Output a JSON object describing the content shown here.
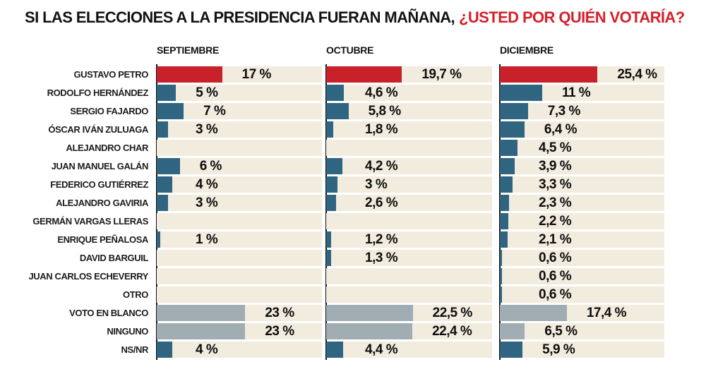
{
  "title": {
    "black": "SI LAS ELECCIONES A LA PRESIDENCIA FUERAN MAÑANA,",
    "red": "¿USTED POR QUIÉN VOTARÍA?"
  },
  "chart_data": {
    "type": "bar",
    "orientation": "horizontal",
    "title": "SI LAS ELECCIONES A LA PRESIDENCIA FUERAN MAÑANA, ¿USTED POR QUIÉN VOTARÍA?",
    "unit": "%",
    "xlim": [
      0,
      43
    ],
    "grid": false,
    "legend": "none",
    "categories": [
      "GUSTAVO PETRO",
      "RODOLFO HERNÁNDEZ",
      "SERGIO FAJARDO",
      "ÓSCAR IVÁN ZULUAGA",
      "ALEJANDRO CHAR",
      "JUAN MANUEL GALÁN",
      "FEDERICO GUTIÉRREZ",
      "ALEJANDRO GAVIRIA",
      "GERMÁN VARGAS LLERAS",
      "ENRIQUE PEÑALOSA",
      "DAVID BARGUIL",
      "JUAN CARLOS ECHEVERRY",
      "OTRO",
      "VOTO EN BLANCO",
      "NINGUNO",
      "NS/NR"
    ],
    "row_types": [
      "highlight",
      "candidate",
      "candidate",
      "candidate",
      "candidate",
      "candidate",
      "candidate",
      "candidate",
      "candidate",
      "candidate",
      "candidate",
      "candidate",
      "candidate",
      "neutral",
      "neutral",
      "candidate"
    ],
    "series": [
      {
        "name": "SEPTIEMBRE",
        "values": [
          17,
          5,
          7,
          3,
          null,
          6,
          4,
          3,
          null,
          1,
          null,
          null,
          null,
          23,
          23,
          4
        ],
        "labels": [
          "17 %",
          "5 %",
          "7 %",
          "3 %",
          "",
          "6 %",
          "4 %",
          "3 %",
          "",
          "1 %",
          "",
          "",
          "",
          "23 %",
          "23 %",
          "4 %"
        ]
      },
      {
        "name": "OCTUBRE",
        "values": [
          19.7,
          4.6,
          5.8,
          1.8,
          null,
          4.2,
          3,
          2.6,
          null,
          1.2,
          1.3,
          null,
          null,
          22.5,
          22.4,
          4.4
        ],
        "labels": [
          "19,7 %",
          "4,6 %",
          "5,8 %",
          "1,8 %",
          "",
          "4,2 %",
          "3 %",
          "2,6 %",
          "",
          "1,2 %",
          "1,3 %",
          "",
          "",
          "22,5 %",
          "22,4 %",
          "4,4 %"
        ]
      },
      {
        "name": "DICIEMBRE",
        "values": [
          25.4,
          11,
          7.3,
          6.4,
          4.5,
          3.9,
          3.3,
          2.3,
          2.2,
          2.1,
          0.6,
          0.6,
          0.6,
          17.4,
          6.5,
          5.9
        ],
        "labels": [
          "25,4 %",
          "11 %",
          "7,3 %",
          "6,4 %",
          "4,5 %",
          "3,9 %",
          "3,3 %",
          "2,3 %",
          "2,2 %",
          "2,1 %",
          "0,6 %",
          "0,6 %",
          "0,6 %",
          "17,4 %",
          "6,5 %",
          "5,9 %"
        ]
      }
    ],
    "colors": {
      "highlight": "#c9212a",
      "candidate": "#2f6580",
      "neutral": "#a0aeb4",
      "row_background": "#f2ecdf",
      "title_accent": "#d4212a",
      "axis": "#111111",
      "text": "#0d0d0d"
    }
  }
}
